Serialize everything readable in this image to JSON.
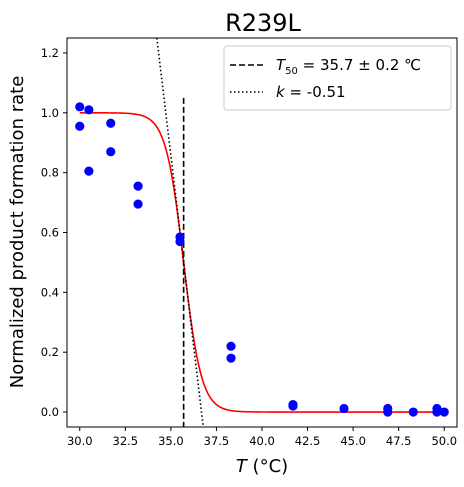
{
  "chart_data": {
    "type": "scatter",
    "title": "R239L",
    "xlabel_italic": "T",
    "xlabel_unit": " (°C)",
    "ylabel": "Normalized product formation rate",
    "xlim": [
      29.3,
      50.7
    ],
    "ylim": [
      -0.05,
      1.25
    ],
    "x_ticks": [
      30.0,
      32.5,
      35.0,
      37.5,
      40.0,
      42.5,
      45.0,
      47.5,
      50.0
    ],
    "x_tick_labels": [
      "30.0",
      "32.5",
      "35.0",
      "37.5",
      "40.0",
      "42.5",
      "45.0",
      "47.5",
      "50.0"
    ],
    "y_ticks": [
      0.0,
      0.2,
      0.4,
      0.6,
      0.8,
      1.0,
      1.2
    ],
    "y_tick_labels": [
      "0.0",
      "0.2",
      "0.4",
      "0.6",
      "0.8",
      "1.0",
      "1.2"
    ],
    "grid": false,
    "legend_position": "top-right",
    "series": [
      {
        "kind": "scatter",
        "color": "#0000ff",
        "points": [
          [
            30.0,
            1.02
          ],
          [
            30.0,
            0.955
          ],
          [
            30.5,
            1.01
          ],
          [
            30.5,
            0.805
          ],
          [
            31.7,
            0.965
          ],
          [
            31.7,
            0.87
          ],
          [
            33.2,
            0.755
          ],
          [
            33.2,
            0.695
          ],
          [
            35.5,
            0.585
          ],
          [
            35.5,
            0.57
          ],
          [
            38.3,
            0.22
          ],
          [
            38.3,
            0.18
          ],
          [
            41.7,
            0.025
          ],
          [
            41.7,
            0.02
          ],
          [
            44.5,
            0.012
          ],
          [
            46.9,
            0.012
          ],
          [
            46.9,
            0.0
          ],
          [
            48.3,
            0.0
          ],
          [
            49.6,
            0.012
          ],
          [
            49.6,
            0.0
          ],
          [
            50.0,
            0.0
          ]
        ]
      },
      {
        "kind": "fit",
        "color": "#ff0000",
        "model": "sigmoid",
        "t50": 35.7,
        "slope": 0.51
      },
      {
        "kind": "vline",
        "name_prefix": "T",
        "name_sub": "50",
        "name_rest": " = 35.7 ± 0.2 ℃",
        "color": "#000000",
        "dash": "dashed",
        "x": 35.7,
        "y_range": [
          -0.05,
          1.05
        ]
      },
      {
        "kind": "tangent",
        "name_prefix": "k",
        "name_rest": " = -0.51",
        "color": "#000000",
        "dash": "dotted",
        "x0": 35.7,
        "y0": 0.5,
        "k": -0.51
      }
    ]
  }
}
